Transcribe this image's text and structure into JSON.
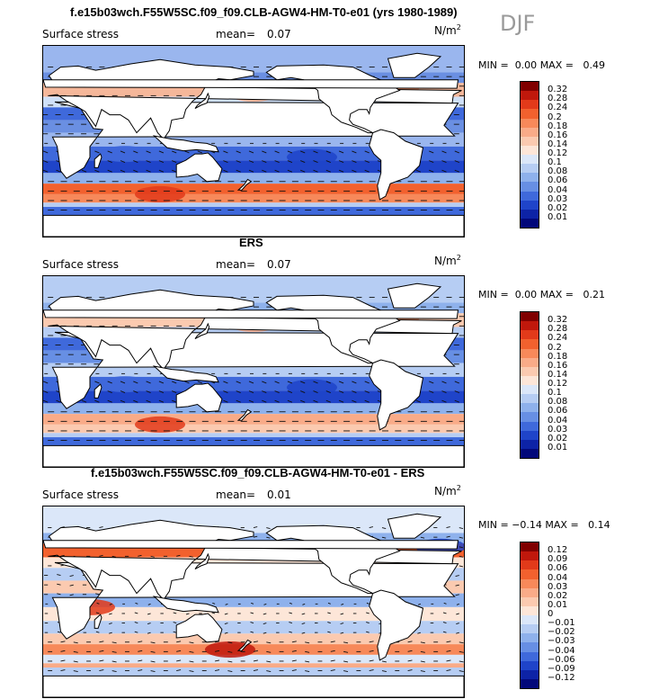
{
  "season_label": "DJF",
  "panels": [
    {
      "title": "f.e15b03wch.F55W5SC.f09_f09.CLB-AGW4-HM-T0-e01 (yrs 1980-1989)",
      "field": "Surface stress",
      "mean_label": "mean=",
      "mean_value": "0.07",
      "units_base": "N/m",
      "units_exp": "2",
      "min_label": "MIN =",
      "min_value": "0.00",
      "max_label": "MAX =",
      "max_value": "0.49",
      "colorbar_labels": [
        "0.32",
        "0.28",
        "0.24",
        "0.2",
        "0.18",
        "0.16",
        "0.14",
        "0.12",
        "0.1",
        "0.08",
        "0.06",
        "0.04",
        "0.03",
        "0.02",
        "0.01"
      ],
      "colorbar_colors": [
        "#800000",
        "#c0180c",
        "#e23a1a",
        "#f2612e",
        "#f7895a",
        "#f9ab88",
        "#fbcab0",
        "#fde6d8",
        "#dbe7f9",
        "#b6cdf3",
        "#8eb1ec",
        "#678fe4",
        "#3f69db",
        "#1f44c9",
        "#0d23a6",
        "#02087a"
      ],
      "style": "model"
    },
    {
      "title": "ERS",
      "field": "Surface stress",
      "mean_label": "mean=",
      "mean_value": "0.07",
      "units_base": "N/m",
      "units_exp": "2",
      "min_label": "MIN =",
      "min_value": "0.00",
      "max_label": "MAX =",
      "max_value": "0.21",
      "colorbar_labels": [
        "0.32",
        "0.28",
        "0.24",
        "0.2",
        "0.18",
        "0.16",
        "0.14",
        "0.12",
        "0.1",
        "0.08",
        "0.06",
        "0.04",
        "0.03",
        "0.02",
        "0.01"
      ],
      "colorbar_colors": [
        "#800000",
        "#c0180c",
        "#e23a1a",
        "#f2612e",
        "#f7895a",
        "#f9ab88",
        "#fbcab0",
        "#fde6d8",
        "#dbe7f9",
        "#b6cdf3",
        "#8eb1ec",
        "#678fe4",
        "#3f69db",
        "#1f44c9",
        "#0d23a6",
        "#02087a"
      ],
      "style": "obs"
    },
    {
      "title": "f.e15b03wch.F55W5SC.f09_f09.CLB-AGW4-HM-T0-e01 - ERS",
      "field": "Surface stress",
      "mean_label": "mean=",
      "mean_value": "0.01",
      "units_base": "N/m",
      "units_exp": "2",
      "min_label": "MIN =",
      "min_value": "−0.14",
      "max_label": "MAX =",
      "max_value": "0.14",
      "colorbar_labels": [
        "0.12",
        "0.09",
        "0.06",
        "0.04",
        "0.03",
        "0.02",
        "0.01",
        "0",
        "−0.01",
        "−0.02",
        "−0.03",
        "−0.04",
        "−0.06",
        "−0.09",
        "−0.12"
      ],
      "colorbar_colors": [
        "#800000",
        "#c0180c",
        "#e23a1a",
        "#f2612e",
        "#f7895a",
        "#f9ab88",
        "#fbcab0",
        "#fde6d8",
        "#dbe7f9",
        "#b6cdf3",
        "#8eb1ec",
        "#678fe4",
        "#3f69db",
        "#1f44c9",
        "#0d23a6",
        "#02087a"
      ],
      "style": "diff"
    }
  ]
}
